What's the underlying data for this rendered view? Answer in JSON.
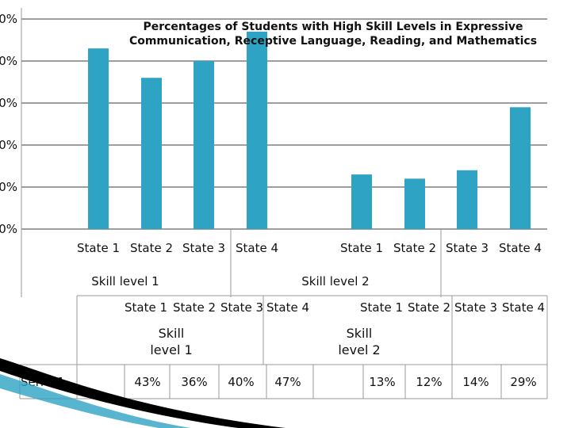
{
  "chart_data": {
    "type": "bar",
    "title_lines": [
      "Percentages of Students with High Skill Levels in Expressive",
      "Communication, Receptive Language, Reading, and Mathematics"
    ],
    "y_ticks": [
      "0%",
      "0%",
      "0%",
      "0%",
      "0%",
      "0%"
    ],
    "groups": [
      {
        "label": "Skill level 1",
        "table_label_lines": [
          "Skill",
          "level 1"
        ],
        "categories": [
          "State 1",
          "State 2",
          "State 3",
          "State 4"
        ]
      },
      {
        "label": "Skill level 2",
        "table_label_lines": [
          "Skill",
          "level 2"
        ],
        "categories": [
          "State 1",
          "State 2",
          "State 3",
          "State 4"
        ]
      }
    ],
    "table_categories": [
      "State 1",
      "State 2",
      "State 3",
      "State 4",
      "State 1",
      "State 2",
      "State 3",
      "State 4"
    ],
    "series": [
      {
        "name": "Series1",
        "values": [
          43,
          36,
          40,
          47,
          13,
          12,
          14,
          29
        ],
        "labels": [
          "43%",
          "36%",
          "40%",
          "47%",
          "13%",
          "12%",
          "14%",
          "29%"
        ]
      }
    ],
    "ylim": [
      0,
      50
    ],
    "grid": true,
    "bar_color": "#2ea3c4",
    "legend_placement": "data-table"
  }
}
